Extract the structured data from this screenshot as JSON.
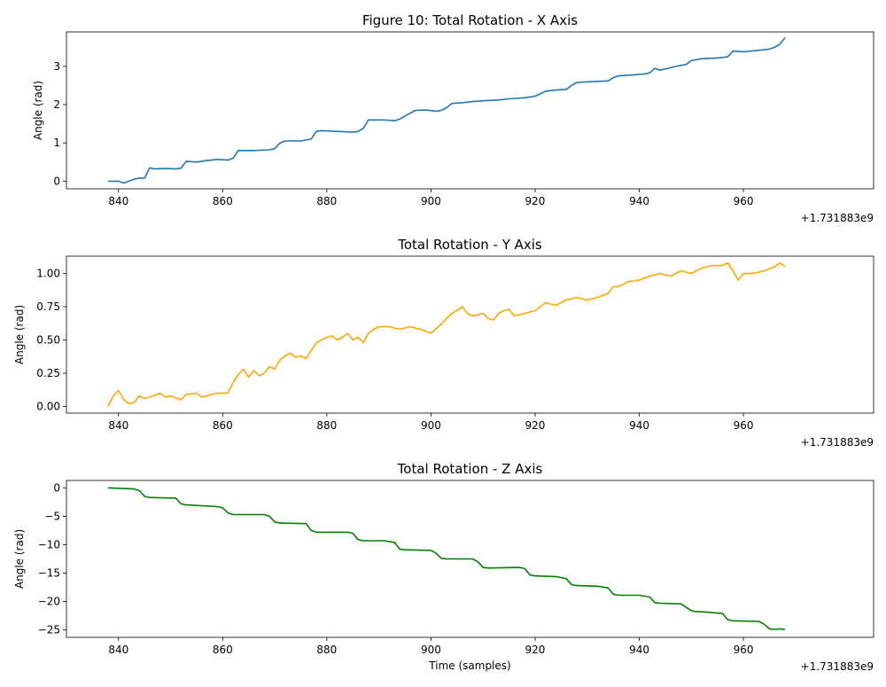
{
  "chart_data": [
    {
      "type": "line",
      "title": "Figure 10: Total Rotation - X Axis",
      "xlabel": "",
      "ylabel": "Angle (rad)",
      "x_offset_label": "+1.731883e9",
      "color": "#1f77b4",
      "xlim": [
        830,
        985
      ],
      "ylim": [
        -0.2,
        3.9
      ],
      "xticks": [
        840,
        860,
        880,
        900,
        920,
        940,
        960
      ],
      "yticks": [
        0,
        1,
        2,
        3
      ],
      "x": [
        838,
        840,
        841,
        843,
        844,
        845,
        846,
        847,
        849,
        851,
        852,
        853,
        855,
        857,
        859,
        861,
        862,
        863,
        866,
        869,
        870,
        871,
        872,
        875,
        877,
        878,
        879,
        882,
        885,
        886,
        887,
        888,
        889,
        891,
        893,
        894,
        895,
        897,
        899,
        901,
        902,
        903,
        904,
        906,
        908,
        910,
        913,
        915,
        918,
        920,
        921,
        922,
        924,
        926,
        927,
        928,
        931,
        934,
        935,
        936,
        939,
        941,
        942,
        943,
        944,
        947,
        949,
        950,
        952,
        955,
        957,
        958,
        960,
        963,
        965,
        966,
        967,
        968
      ],
      "y": [
        0.0,
        0.0,
        -0.05,
        0.05,
        0.08,
        0.08,
        0.35,
        0.32,
        0.33,
        0.32,
        0.34,
        0.52,
        0.5,
        0.54,
        0.57,
        0.55,
        0.6,
        0.8,
        0.8,
        0.82,
        0.85,
        1.0,
        1.05,
        1.05,
        1.1,
        1.3,
        1.32,
        1.3,
        1.28,
        1.3,
        1.38,
        1.6,
        1.6,
        1.6,
        1.58,
        1.62,
        1.7,
        1.85,
        1.86,
        1.83,
        1.85,
        1.92,
        2.03,
        2.05,
        2.08,
        2.1,
        2.12,
        2.15,
        2.18,
        2.22,
        2.28,
        2.35,
        2.38,
        2.4,
        2.5,
        2.58,
        2.6,
        2.62,
        2.7,
        2.75,
        2.78,
        2.8,
        2.83,
        2.95,
        2.9,
        3.0,
        3.05,
        3.15,
        3.2,
        3.22,
        3.25,
        3.4,
        3.38,
        3.42,
        3.45,
        3.5,
        3.58,
        3.75
      ]
    },
    {
      "type": "line",
      "title": "Total Rotation - Y Axis",
      "xlabel": "",
      "ylabel": "Angle (rad)",
      "x_offset_label": "+1.731883e9",
      "color": "#ffa500",
      "xlim": [
        830,
        985
      ],
      "ylim": [
        -0.05,
        1.13
      ],
      "xticks": [
        840,
        860,
        880,
        900,
        920,
        940,
        960
      ],
      "yticks": [
        0.0,
        0.25,
        0.5,
        0.75,
        1.0
      ],
      "yticklabels": [
        "0.00",
        "0.25",
        "0.50",
        "0.75",
        "1.00"
      ],
      "x": [
        838,
        839,
        840,
        841,
        842,
        843,
        844,
        845,
        846,
        848,
        849,
        850,
        852,
        853,
        855,
        856,
        857,
        859,
        861,
        862,
        863,
        864,
        865,
        866,
        867,
        868,
        869,
        870,
        871,
        872,
        873,
        874,
        875,
        876,
        877,
        878,
        879,
        880,
        881,
        882,
        883,
        884,
        885,
        886,
        887,
        888,
        889,
        890,
        892,
        894,
        896,
        898,
        900,
        902,
        904,
        905,
        906,
        907,
        908,
        910,
        911,
        912,
        913,
        914,
        915,
        916,
        918,
        920,
        921,
        922,
        924,
        926,
        928,
        930,
        932,
        934,
        935,
        936,
        937,
        938,
        940,
        942,
        944,
        946,
        948,
        950,
        952,
        954,
        956,
        957,
        958,
        959,
        960,
        962,
        964,
        966,
        967,
        968
      ],
      "y": [
        0.0,
        0.08,
        0.12,
        0.05,
        0.02,
        0.03,
        0.08,
        0.06,
        0.07,
        0.1,
        0.07,
        0.08,
        0.05,
        0.09,
        0.1,
        0.07,
        0.08,
        0.1,
        0.1,
        0.18,
        0.24,
        0.28,
        0.22,
        0.27,
        0.23,
        0.25,
        0.3,
        0.28,
        0.35,
        0.38,
        0.4,
        0.37,
        0.38,
        0.36,
        0.42,
        0.48,
        0.5,
        0.52,
        0.53,
        0.5,
        0.52,
        0.55,
        0.5,
        0.52,
        0.48,
        0.55,
        0.58,
        0.6,
        0.6,
        0.58,
        0.6,
        0.58,
        0.55,
        0.62,
        0.7,
        0.72,
        0.75,
        0.7,
        0.68,
        0.7,
        0.66,
        0.65,
        0.7,
        0.72,
        0.73,
        0.68,
        0.7,
        0.72,
        0.75,
        0.78,
        0.76,
        0.8,
        0.82,
        0.8,
        0.82,
        0.85,
        0.9,
        0.9,
        0.92,
        0.94,
        0.95,
        0.98,
        1.0,
        0.98,
        1.02,
        1.0,
        1.04,
        1.06,
        1.06,
        1.08,
        1.02,
        0.95,
        1.0,
        1.0,
        1.02,
        1.05,
        1.08,
        1.05
      ]
    },
    {
      "type": "line",
      "title": "Total Rotation - Z Axis",
      "xlabel": "Time (samples)",
      "ylabel": "Angle (rad)",
      "x_offset_label": "+1.731883e9",
      "color": "#008000",
      "xlim": [
        830,
        985
      ],
      "ylim": [
        -26.3,
        1.3
      ],
      "xticks": [
        840,
        860,
        880,
        900,
        920,
        940,
        960
      ],
      "yticks": [
        0,
        -5,
        -10,
        -15,
        -20,
        -25
      ],
      "x": [
        838,
        843,
        844,
        845,
        846,
        851,
        852,
        853,
        859,
        860,
        861,
        862,
        868,
        869,
        870,
        871,
        876,
        877,
        878,
        884,
        885,
        886,
        887,
        891,
        893,
        894,
        895,
        900,
        901,
        902,
        903,
        908,
        909,
        910,
        911,
        917,
        918,
        919,
        920,
        924,
        926,
        927,
        928,
        932,
        934,
        935,
        936,
        940,
        942,
        943,
        944,
        948,
        950,
        951,
        952,
        956,
        957,
        958,
        959,
        963,
        964,
        965,
        966,
        967,
        968
      ],
      "y": [
        0.0,
        -0.2,
        -0.5,
        -1.5,
        -1.7,
        -1.8,
        -2.8,
        -3.0,
        -3.3,
        -3.5,
        -4.4,
        -4.7,
        -4.7,
        -5.0,
        -6.0,
        -6.2,
        -6.3,
        -7.5,
        -7.8,
        -7.8,
        -8.0,
        -9.1,
        -9.3,
        -9.3,
        -9.6,
        -10.8,
        -10.9,
        -11.0,
        -11.5,
        -12.4,
        -12.5,
        -12.5,
        -13.0,
        -14.0,
        -14.1,
        -14.0,
        -14.2,
        -15.3,
        -15.5,
        -15.6,
        -16.0,
        -17.0,
        -17.2,
        -17.3,
        -17.6,
        -18.7,
        -18.9,
        -18.9,
        -19.2,
        -20.2,
        -20.3,
        -20.4,
        -21.6,
        -21.8,
        -21.8,
        -22.1,
        -23.2,
        -23.4,
        -23.4,
        -23.5,
        -24.0,
        -24.8,
        -24.9,
        -24.8,
        -24.9
      ]
    }
  ]
}
